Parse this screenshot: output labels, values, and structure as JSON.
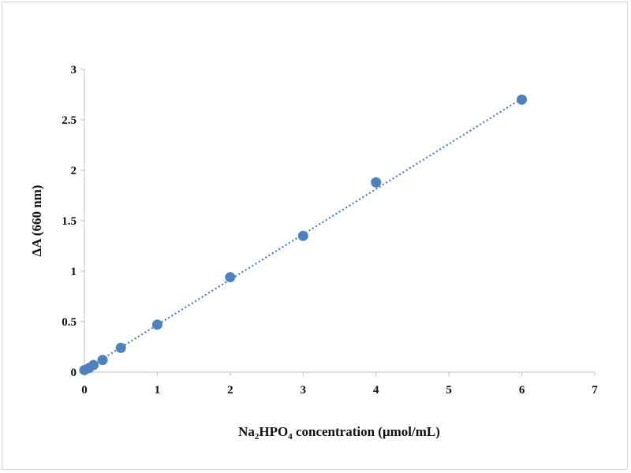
{
  "chart_data": {
    "type": "scatter",
    "title": "",
    "xlabel": "Na2HPO4 concentration (μmol/mL)",
    "xlabel_parts": {
      "a": "Na",
      "sub1": "2",
      "b": "HPO",
      "sub2": "4",
      "c": " concentration (μmol/mL)"
    },
    "ylabel": "ΔA (660 nm)",
    "xlim": [
      0,
      7
    ],
    "ylim": [
      0,
      3
    ],
    "x_ticks": [
      "0",
      "1",
      "2",
      "3",
      "4",
      "5",
      "6",
      "7"
    ],
    "y_ticks": [
      "0",
      "0.5",
      "1",
      "1.5",
      "2",
      "2.5",
      "3"
    ],
    "grid": false,
    "legend": "none",
    "trendline": {
      "style": "dotted",
      "type": "linear",
      "x0": 0,
      "y0": 0.02,
      "x1": 6,
      "y1": 2.71
    },
    "series": [
      {
        "x": [
          0.0,
          0.0625,
          0.125,
          0.25,
          0.5,
          1,
          2,
          3,
          4,
          6
        ],
        "y": [
          0.02,
          0.04,
          0.07,
          0.12,
          0.24,
          0.47,
          0.94,
          1.35,
          1.88,
          2.7
        ]
      }
    ],
    "colors": {
      "marker": "#4f81bd",
      "trendline": "#4a7ebb",
      "axis": "#bfbfbf"
    }
  }
}
